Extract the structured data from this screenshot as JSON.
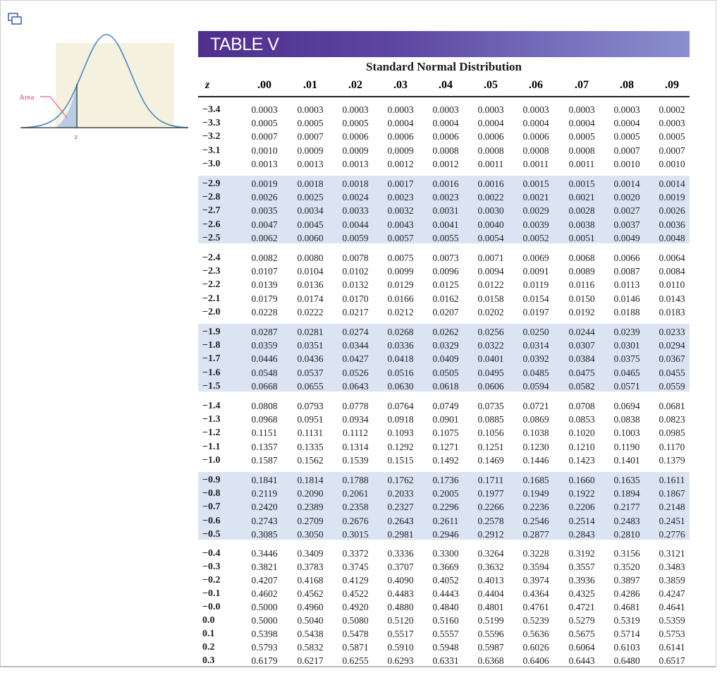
{
  "header": {
    "title": "TABLE V",
    "subtitle": "Standard Normal Distribution"
  },
  "figure": {
    "area_label": "Area",
    "z_label": "z"
  },
  "table": {
    "z_header": "z",
    "columns": [
      ".00",
      ".01",
      ".02",
      ".03",
      ".04",
      ".05",
      ".06",
      ".07",
      ".08",
      ".09"
    ],
    "rows": [
      {
        "z": "−3.4",
        "v": [
          "0.0003",
          "0.0003",
          "0.0003",
          "0.0003",
          "0.0003",
          "0.0003",
          "0.0003",
          "0.0003",
          "0.0003",
          "0.0002"
        ]
      },
      {
        "z": "−3.3",
        "v": [
          "0.0005",
          "0.0005",
          "0.0005",
          "0.0004",
          "0.0004",
          "0.0004",
          "0.0004",
          "0.0004",
          "0.0004",
          "0.0003"
        ]
      },
      {
        "z": "−3.2",
        "v": [
          "0.0007",
          "0.0007",
          "0.0006",
          "0.0006",
          "0.0006",
          "0.0006",
          "0.0006",
          "0.0005",
          "0.0005",
          "0.0005"
        ]
      },
      {
        "z": "−3.1",
        "v": [
          "0.0010",
          "0.0009",
          "0.0009",
          "0.0009",
          "0.0008",
          "0.0008",
          "0.0008",
          "0.0008",
          "0.0007",
          "0.0007"
        ]
      },
      {
        "z": "−3.0",
        "v": [
          "0.0013",
          "0.0013",
          "0.0013",
          "0.0012",
          "0.0012",
          "0.0011",
          "0.0011",
          "0.0011",
          "0.0010",
          "0.0010"
        ]
      },
      {
        "z": "−2.9",
        "v": [
          "0.0019",
          "0.0018",
          "0.0018",
          "0.0017",
          "0.0016",
          "0.0016",
          "0.0015",
          "0.0015",
          "0.0014",
          "0.0014"
        ]
      },
      {
        "z": "−2.8",
        "v": [
          "0.0026",
          "0.0025",
          "0.0024",
          "0.0023",
          "0.0023",
          "0.0022",
          "0.0021",
          "0.0021",
          "0.0020",
          "0.0019"
        ]
      },
      {
        "z": "−2.7",
        "v": [
          "0.0035",
          "0.0034",
          "0.0033",
          "0.0032",
          "0.0031",
          "0.0030",
          "0.0029",
          "0.0028",
          "0.0027",
          "0.0026"
        ]
      },
      {
        "z": "−2.6",
        "v": [
          "0.0047",
          "0.0045",
          "0.0044",
          "0.0043",
          "0.0041",
          "0.0040",
          "0.0039",
          "0.0038",
          "0.0037",
          "0.0036"
        ]
      },
      {
        "z": "−2.5",
        "v": [
          "0.0062",
          "0.0060",
          "0.0059",
          "0.0057",
          "0.0055",
          "0.0054",
          "0.0052",
          "0.0051",
          "0.0049",
          "0.0048"
        ]
      },
      {
        "z": "−2.4",
        "v": [
          "0.0082",
          "0.0080",
          "0.0078",
          "0.0075",
          "0.0073",
          "0.0071",
          "0.0069",
          "0.0068",
          "0.0066",
          "0.0064"
        ]
      },
      {
        "z": "−2.3",
        "v": [
          "0.0107",
          "0.0104",
          "0.0102",
          "0.0099",
          "0.0096",
          "0.0094",
          "0.0091",
          "0.0089",
          "0.0087",
          "0.0084"
        ]
      },
      {
        "z": "−2.2",
        "v": [
          "0.0139",
          "0.0136",
          "0.0132",
          "0.0129",
          "0.0125",
          "0.0122",
          "0.0119",
          "0.0116",
          "0.0113",
          "0.0110"
        ]
      },
      {
        "z": "−2.1",
        "v": [
          "0.0179",
          "0.0174",
          "0.0170",
          "0.0166",
          "0.0162",
          "0.0158",
          "0.0154",
          "0.0150",
          "0.0146",
          "0.0143"
        ]
      },
      {
        "z": "−2.0",
        "v": [
          "0.0228",
          "0.0222",
          "0.0217",
          "0.0212",
          "0.0207",
          "0.0202",
          "0.0197",
          "0.0192",
          "0.0188",
          "0.0183"
        ]
      },
      {
        "z": "−1.9",
        "v": [
          "0.0287",
          "0.0281",
          "0.0274",
          "0.0268",
          "0.0262",
          "0.0256",
          "0.0250",
          "0.0244",
          "0.0239",
          "0.0233"
        ]
      },
      {
        "z": "−1.8",
        "v": [
          "0.0359",
          "0.0351",
          "0.0344",
          "0.0336",
          "0.0329",
          "0.0322",
          "0.0314",
          "0.0307",
          "0.0301",
          "0.0294"
        ]
      },
      {
        "z": "−1.7",
        "v": [
          "0.0446",
          "0.0436",
          "0.0427",
          "0.0418",
          "0.0409",
          "0.0401",
          "0.0392",
          "0.0384",
          "0.0375",
          "0.0367"
        ]
      },
      {
        "z": "−1.6",
        "v": [
          "0.0548",
          "0.0537",
          "0.0526",
          "0.0516",
          "0.0505",
          "0.0495",
          "0.0485",
          "0.0475",
          "0.0465",
          "0.0455"
        ]
      },
      {
        "z": "−1.5",
        "v": [
          "0.0668",
          "0.0655",
          "0.0643",
          "0.0630",
          "0.0618",
          "0.0606",
          "0.0594",
          "0.0582",
          "0.0571",
          "0.0559"
        ]
      },
      {
        "z": "−1.4",
        "v": [
          "0.0808",
          "0.0793",
          "0.0778",
          "0.0764",
          "0.0749",
          "0.0735",
          "0.0721",
          "0.0708",
          "0.0694",
          "0.0681"
        ]
      },
      {
        "z": "−1.3",
        "v": [
          "0.0968",
          "0.0951",
          "0.0934",
          "0.0918",
          "0.0901",
          "0.0885",
          "0.0869",
          "0.0853",
          "0.0838",
          "0.0823"
        ]
      },
      {
        "z": "−1.2",
        "v": [
          "0.1151",
          "0.1131",
          "0.1112",
          "0.1093",
          "0.1075",
          "0.1056",
          "0.1038",
          "0.1020",
          "0.1003",
          "0.0985"
        ]
      },
      {
        "z": "−1.1",
        "v": [
          "0.1357",
          "0.1335",
          "0.1314",
          "0.1292",
          "0.1271",
          "0.1251",
          "0.1230",
          "0.1210",
          "0.1190",
          "0.1170"
        ]
      },
      {
        "z": "−1.0",
        "v": [
          "0.1587",
          "0.1562",
          "0.1539",
          "0.1515",
          "0.1492",
          "0.1469",
          "0.1446",
          "0.1423",
          "0.1401",
          "0.1379"
        ]
      },
      {
        "z": "−0.9",
        "v": [
          "0.1841",
          "0.1814",
          "0.1788",
          "0.1762",
          "0.1736",
          "0.1711",
          "0.1685",
          "0.1660",
          "0.1635",
          "0.1611"
        ]
      },
      {
        "z": "−0.8",
        "v": [
          "0.2119",
          "0.2090",
          "0.2061",
          "0.2033",
          "0.2005",
          "0.1977",
          "0.1949",
          "0.1922",
          "0.1894",
          "0.1867"
        ]
      },
      {
        "z": "−0.7",
        "v": [
          "0.2420",
          "0.2389",
          "0.2358",
          "0.2327",
          "0.2296",
          "0.2266",
          "0.2236",
          "0.2206",
          "0.2177",
          "0.2148"
        ]
      },
      {
        "z": "−0.6",
        "v": [
          "0.2743",
          "0.2709",
          "0.2676",
          "0.2643",
          "0.2611",
          "0.2578",
          "0.2546",
          "0.2514",
          "0.2483",
          "0.2451"
        ]
      },
      {
        "z": "−0.5",
        "v": [
          "0.3085",
          "0.3050",
          "0.3015",
          "0.2981",
          "0.2946",
          "0.2912",
          "0.2877",
          "0.2843",
          "0.2810",
          "0.2776"
        ]
      },
      {
        "z": "−0.4",
        "v": [
          "0.3446",
          "0.3409",
          "0.3372",
          "0.3336",
          "0.3300",
          "0.3264",
          "0.3228",
          "0.3192",
          "0.3156",
          "0.3121"
        ]
      },
      {
        "z": "−0.3",
        "v": [
          "0.3821",
          "0.3783",
          "0.3745",
          "0.3707",
          "0.3669",
          "0.3632",
          "0.3594",
          "0.3557",
          "0.3520",
          "0.3483"
        ]
      },
      {
        "z": "−0.2",
        "v": [
          "0.4207",
          "0.4168",
          "0.4129",
          "0.4090",
          "0.4052",
          "0.4013",
          "0.3974",
          "0.3936",
          "0.3897",
          "0.3859"
        ]
      },
      {
        "z": "−0.1",
        "v": [
          "0.4602",
          "0.4562",
          "0.4522",
          "0.4483",
          "0.4443",
          "0.4404",
          "0.4364",
          "0.4325",
          "0.4286",
          "0.4247"
        ]
      },
      {
        "z": "−0.0",
        "v": [
          "0.5000",
          "0.4960",
          "0.4920",
          "0.4880",
          "0.4840",
          "0.4801",
          "0.4761",
          "0.4721",
          "0.4681",
          "0.4641"
        ]
      },
      {
        "z": "0.0",
        "v": [
          "0.5000",
          "0.5040",
          "0.5080",
          "0.5120",
          "0.5160",
          "0.5199",
          "0.5239",
          "0.5279",
          "0.5319",
          "0.5359"
        ]
      },
      {
        "z": "0.1",
        "v": [
          "0.5398",
          "0.5438",
          "0.5478",
          "0.5517",
          "0.5557",
          "0.5596",
          "0.5636",
          "0.5675",
          "0.5714",
          "0.5753"
        ]
      },
      {
        "z": "0.2",
        "v": [
          "0.5793",
          "0.5832",
          "0.5871",
          "0.5910",
          "0.5948",
          "0.5987",
          "0.6026",
          "0.6064",
          "0.6103",
          "0.6141"
        ]
      },
      {
        "z": "0.3",
        "v": [
          "0.6179",
          "0.6217",
          "0.6255",
          "0.6293",
          "0.6331",
          "0.6368",
          "0.6406",
          "0.6443",
          "0.6480",
          "0.6517"
        ]
      }
    ]
  },
  "colors": {
    "banner_start": "#4f2e8c",
    "banner_end": "#8a8fcf",
    "band_shade": "#dbe4f3",
    "curve": "#4a86c8",
    "area_fill": "#b6cde6",
    "area_label": "#e0338a"
  }
}
